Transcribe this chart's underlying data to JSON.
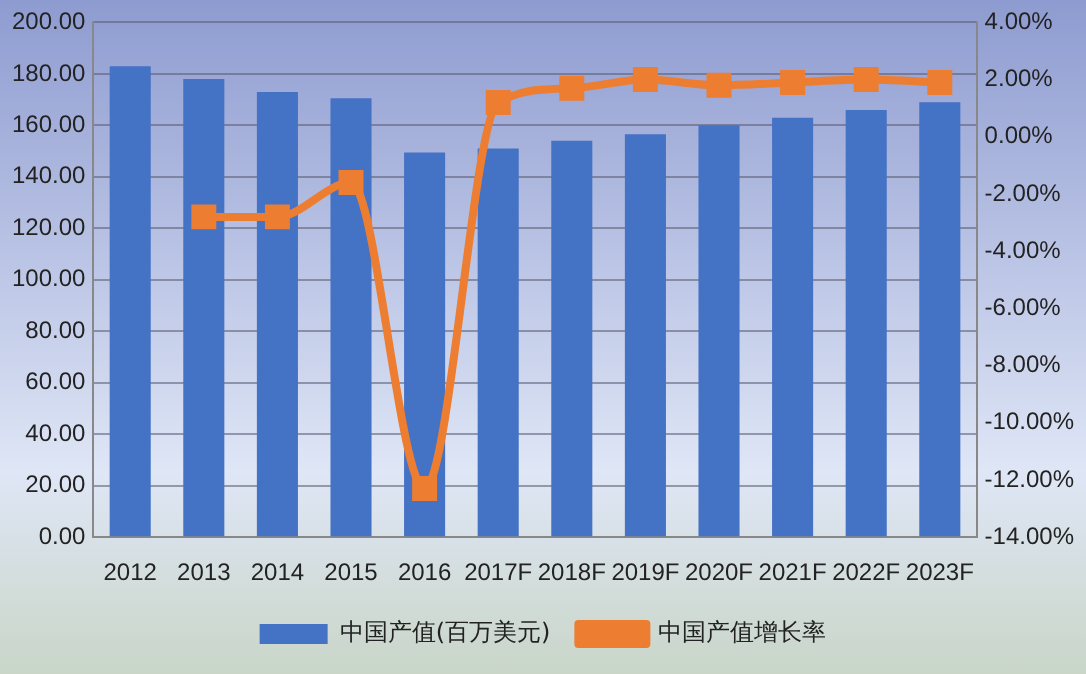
{
  "chart_data": {
    "type": "bar",
    "categories": [
      "2012",
      "2013",
      "2014",
      "2015",
      "2016",
      "2017F",
      "2018F",
      "2019F",
      "2020F",
      "2021F",
      "2022F",
      "2023F"
    ],
    "series": [
      {
        "name": "中国产值(百万美元)",
        "color": "#4472c4",
        "values": [
          183,
          178,
          173,
          170.5,
          149.5,
          151,
          154,
          156.5,
          160,
          163,
          166,
          169
        ]
      },
      {
        "name": "中国产值增长率",
        "type": "line",
        "axis": "y2",
        "color": "#ed7d31",
        "marker": "square",
        "values": [
          null,
          -2.8,
          -2.8,
          -1.6,
          -12.3,
          1.2,
          1.7,
          2.0,
          1.8,
          1.9,
          2.0,
          1.9
        ]
      }
    ],
    "ylim": [
      0,
      200
    ],
    "yticks": [
      {
        "value": 0,
        "label": "0.00"
      },
      {
        "value": 20,
        "label": "20.00"
      },
      {
        "value": 40,
        "label": "40.00"
      },
      {
        "value": 60,
        "label": "60.00"
      },
      {
        "value": 80,
        "label": "80.00"
      },
      {
        "value": 100,
        "label": "100.00"
      },
      {
        "value": 120,
        "label": "120.00"
      },
      {
        "value": 140,
        "label": "140.00"
      },
      {
        "value": 160,
        "label": "160.00"
      },
      {
        "value": 180,
        "label": "180.00"
      },
      {
        "value": 200,
        "label": "200.00"
      }
    ],
    "y2lim": [
      -14,
      4
    ],
    "y2ticks": [
      {
        "value": -14,
        "label": "-14.00%"
      },
      {
        "value": -12,
        "label": "-12.00%"
      },
      {
        "value": -10,
        "label": "-10.00%"
      },
      {
        "value": -8,
        "label": "-8.00%"
      },
      {
        "value": -6,
        "label": "-6.00%"
      },
      {
        "value": -4,
        "label": "-4.00%"
      },
      {
        "value": -2,
        "label": "-2.00%"
      },
      {
        "value": 0,
        "label": "0.00%"
      },
      {
        "value": 2,
        "label": "2.00%"
      },
      {
        "value": 4,
        "label": "4.00%"
      }
    ],
    "grid": "y",
    "legend": "bottom"
  }
}
